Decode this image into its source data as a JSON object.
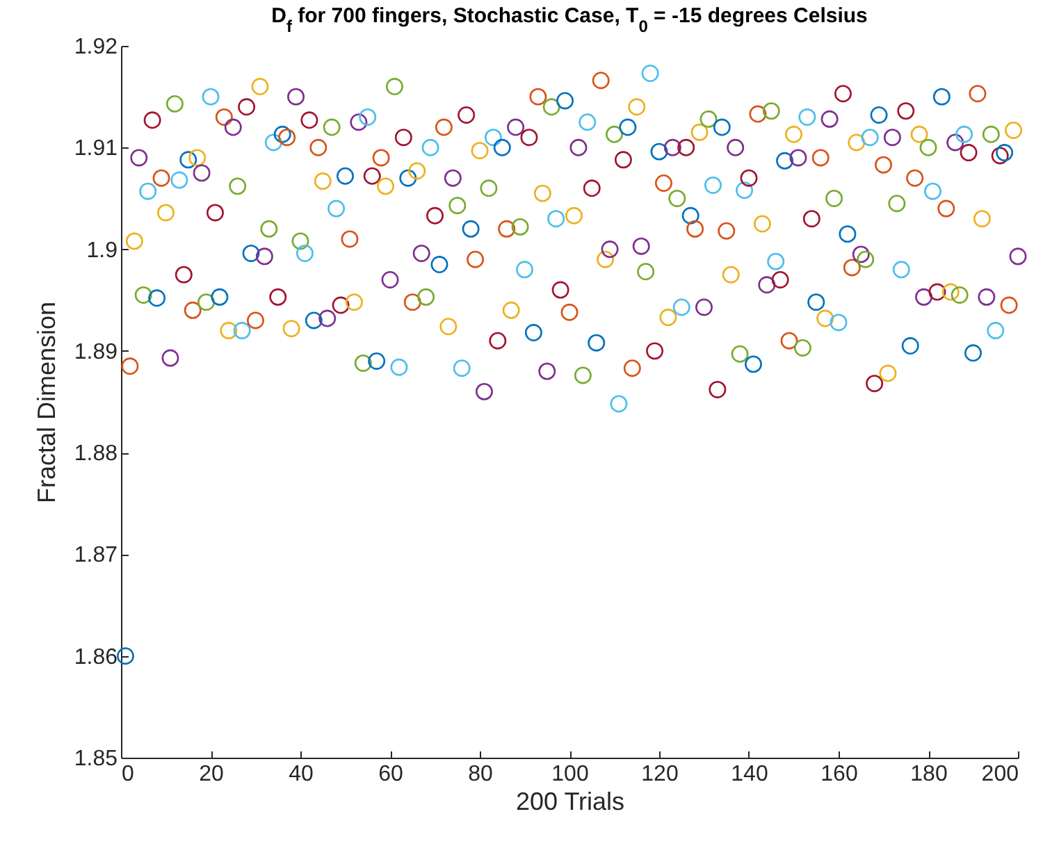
{
  "chart_data": {
    "type": "scatter",
    "title": "D$_{f}$ for 700 fingers, Stochastic Case, T$_{0}$ = -15 degrees Celsius",
    "xlabel": "200 Trials",
    "ylabel": "Fractal Dimension",
    "x": [
      1,
      2,
      3,
      4,
      5,
      6,
      7,
      8,
      9,
      10,
      11,
      12,
      13,
      14,
      15,
      16,
      17,
      18,
      19,
      20,
      21,
      22,
      23,
      24,
      25,
      26,
      27,
      28,
      29,
      30,
      31,
      32,
      33,
      34,
      35,
      36,
      37,
      38,
      39,
      40,
      41,
      42,
      43,
      44,
      45,
      46,
      47,
      48,
      49,
      50,
      51,
      52,
      53,
      54,
      55,
      56,
      57,
      58,
      59,
      60,
      61,
      62,
      63,
      64,
      65,
      66,
      67,
      68,
      69,
      70,
      71,
      72,
      73,
      74,
      75,
      76,
      77,
      78,
      79,
      80,
      81,
      82,
      83,
      84,
      85,
      86,
      87,
      88,
      89,
      90,
      91,
      92,
      93,
      94,
      95,
      96,
      97,
      98,
      99,
      100,
      101,
      102,
      103,
      104,
      105,
      106,
      107,
      108,
      109,
      110,
      111,
      112,
      113,
      114,
      115,
      116,
      117,
      118,
      119,
      120,
      121,
      122,
      123,
      124,
      125,
      126,
      127,
      128,
      129,
      130,
      131,
      132,
      133,
      134,
      135,
      136,
      137,
      138,
      139,
      140,
      141,
      142,
      143,
      144,
      145,
      146,
      147,
      148,
      149,
      150,
      151,
      152,
      153,
      154,
      155,
      156,
      157,
      158,
      159,
      160,
      161,
      162,
      163,
      164,
      165,
      166,
      167,
      168,
      169,
      170,
      171,
      172,
      173,
      174,
      175,
      176,
      177,
      178,
      179,
      180,
      181,
      182,
      183,
      184,
      185,
      186,
      187,
      188,
      189,
      190,
      191,
      192,
      193,
      194,
      195,
      196,
      197,
      198,
      199,
      200
    ],
    "values": [
      1.86,
      1.8885,
      1.9008,
      1.909,
      1.8955,
      1.9057,
      1.9127,
      1.8952,
      1.907,
      1.9036,
      1.8893,
      1.9143,
      1.9068,
      1.8975,
      1.9088,
      1.894,
      1.909,
      1.9075,
      1.8948,
      1.915,
      1.9036,
      1.8953,
      1.913,
      1.892,
      1.912,
      1.9062,
      1.892,
      1.914,
      1.8996,
      1.893,
      1.916,
      1.8993,
      1.902,
      1.9105,
      1.8953,
      1.9113,
      1.911,
      1.8922,
      1.915,
      1.9008,
      1.8996,
      1.9127,
      1.893,
      1.91,
      1.9067,
      1.8932,
      1.912,
      1.904,
      1.8945,
      1.9072,
      1.901,
      1.8948,
      1.9125,
      1.8888,
      1.913,
      1.9072,
      1.889,
      1.909,
      1.9062,
      1.897,
      1.916,
      1.8884,
      1.911,
      1.907,
      1.8948,
      1.9077,
      1.8996,
      1.8953,
      1.91,
      1.9033,
      1.8985,
      1.912,
      1.8924,
      1.907,
      1.9043,
      1.8883,
      1.9132,
      1.902,
      1.899,
      1.9097,
      1.886,
      1.906,
      1.911,
      1.891,
      1.91,
      1.902,
      1.894,
      1.912,
      1.9022,
      1.898,
      1.911,
      1.8918,
      1.915,
      1.9055,
      1.888,
      1.914,
      1.903,
      1.896,
      1.9146,
      1.8938,
      1.9033,
      1.91,
      1.8876,
      1.9125,
      1.906,
      1.8908,
      1.9166,
      1.899,
      1.9,
      1.9113,
      1.8848,
      1.9088,
      1.912,
      1.8883,
      1.914,
      1.9003,
      1.8978,
      1.9173,
      1.89,
      1.9096,
      1.9065,
      1.8933,
      1.91,
      1.905,
      1.8943,
      1.91,
      1.9033,
      1.902,
      1.9115,
      1.8943,
      1.9128,
      1.9063,
      1.8862,
      1.912,
      1.9018,
      1.8975,
      1.91,
      1.8897,
      1.9058,
      1.907,
      1.8887,
      1.9133,
      1.9025,
      1.8965,
      1.9136,
      1.8988,
      1.897,
      1.9087,
      1.891,
      1.9113,
      1.909,
      1.8903,
      1.913,
      1.903,
      1.8948,
      1.909,
      1.8932,
      1.9128,
      1.905,
      1.8928,
      1.9153,
      1.9015,
      1.8982,
      1.9105,
      1.8995,
      1.899,
      1.911,
      1.8868,
      1.9132,
      1.9083,
      1.8878,
      1.911,
      1.9045,
      1.898,
      1.9136,
      1.8905,
      1.907,
      1.9113,
      1.8953,
      1.91,
      1.9057,
      1.8958,
      1.915,
      1.904,
      1.8958,
      1.9105,
      1.8955,
      1.9113,
      1.9095,
      1.8898,
      1.9153,
      1.903,
      1.8953,
      1.9113,
      1.892,
      1.9092,
      1.9095,
      1.8945,
      1.9117,
      1.8993
    ],
    "colors": [
      "#0072bd",
      "#d95319",
      "#edb120",
      "#7e2f8e",
      "#77ac30",
      "#4dbeee",
      "#a2142f",
      "#0072bd",
      "#d95319",
      "#edb120",
      "#7e2f8e",
      "#77ac30",
      "#4dbeee",
      "#a2142f",
      "#0072bd",
      "#d95319",
      "#edb120",
      "#7e2f8e",
      "#77ac30",
      "#4dbeee",
      "#a2142f",
      "#0072bd",
      "#d95319",
      "#edb120",
      "#7e2f8e",
      "#77ac30",
      "#4dbeee",
      "#a2142f",
      "#0072bd",
      "#d95319",
      "#edb120",
      "#7e2f8e",
      "#77ac30",
      "#4dbeee",
      "#a2142f",
      "#0072bd",
      "#d95319",
      "#edb120",
      "#7e2f8e",
      "#77ac30",
      "#4dbeee",
      "#a2142f",
      "#0072bd",
      "#d95319",
      "#edb120",
      "#7e2f8e",
      "#77ac30",
      "#4dbeee",
      "#a2142f",
      "#0072bd",
      "#d95319",
      "#edb120",
      "#7e2f8e",
      "#77ac30",
      "#4dbeee",
      "#a2142f",
      "#0072bd",
      "#d95319",
      "#edb120",
      "#7e2f8e",
      "#77ac30",
      "#4dbeee",
      "#a2142f",
      "#0072bd",
      "#d95319",
      "#edb120",
      "#7e2f8e",
      "#77ac30",
      "#4dbeee",
      "#a2142f",
      "#0072bd",
      "#d95319",
      "#edb120",
      "#7e2f8e",
      "#77ac30",
      "#4dbeee",
      "#a2142f",
      "#0072bd",
      "#d95319",
      "#edb120",
      "#7e2f8e",
      "#77ac30",
      "#4dbeee",
      "#a2142f",
      "#0072bd",
      "#d95319",
      "#edb120",
      "#7e2f8e",
      "#77ac30",
      "#4dbeee",
      "#a2142f",
      "#0072bd",
      "#d95319",
      "#edb120",
      "#7e2f8e",
      "#77ac30",
      "#4dbeee",
      "#a2142f",
      "#0072bd",
      "#d95319",
      "#edb120",
      "#7e2f8e",
      "#77ac30",
      "#4dbeee",
      "#a2142f",
      "#0072bd",
      "#d95319",
      "#edb120",
      "#7e2f8e",
      "#77ac30",
      "#4dbeee",
      "#a2142f",
      "#0072bd",
      "#d95319",
      "#edb120",
      "#7e2f8e",
      "#77ac30",
      "#4dbeee",
      "#a2142f",
      "#0072bd",
      "#d95319",
      "#edb120",
      "#7e2f8e",
      "#77ac30",
      "#4dbeee",
      "#a2142f",
      "#0072bd",
      "#d95319",
      "#edb120",
      "#7e2f8e",
      "#77ac30",
      "#4dbeee",
      "#a2142f",
      "#0072bd",
      "#d95319",
      "#edb120",
      "#7e2f8e",
      "#77ac30",
      "#4dbeee",
      "#a2142f",
      "#0072bd",
      "#d95319",
      "#edb120",
      "#7e2f8e",
      "#77ac30",
      "#4dbeee",
      "#a2142f",
      "#0072bd",
      "#d95319",
      "#edb120",
      "#7e2f8e",
      "#77ac30",
      "#4dbeee",
      "#a2142f",
      "#0072bd",
      "#d95319",
      "#edb120",
      "#7e2f8e",
      "#77ac30",
      "#4dbeee",
      "#a2142f",
      "#0072bd",
      "#d95319",
      "#edb120",
      "#7e2f8e",
      "#77ac30",
      "#4dbeee",
      "#a2142f",
      "#0072bd",
      "#d95319",
      "#edb120",
      "#7e2f8e",
      "#77ac30",
      "#4dbeee",
      "#a2142f",
      "#0072bd",
      "#d95319",
      "#edb120",
      "#7e2f8e",
      "#77ac30",
      "#4dbeee",
      "#a2142f",
      "#0072bd",
      "#d95319",
      "#edb120",
      "#7e2f8e",
      "#77ac30",
      "#4dbeee",
      "#a2142f",
      "#0072bd",
      "#d95319",
      "#edb120",
      "#7e2f8e",
      "#77ac30",
      "#4dbeee",
      "#a2142f",
      "#0072bd",
      "#d95319",
      "#edb120",
      "#7e2f8e"
    ],
    "xlim": [
      0,
      200
    ],
    "xticks": [
      0,
      20,
      40,
      60,
      80,
      100,
      120,
      140,
      160,
      180,
      200
    ],
    "ylim": [
      1.85,
      1.92
    ],
    "yticks": [
      1.85,
      1.86,
      1.87,
      1.88,
      1.89,
      1.9,
      1.91,
      1.92
    ],
    "marker": "circle"
  }
}
